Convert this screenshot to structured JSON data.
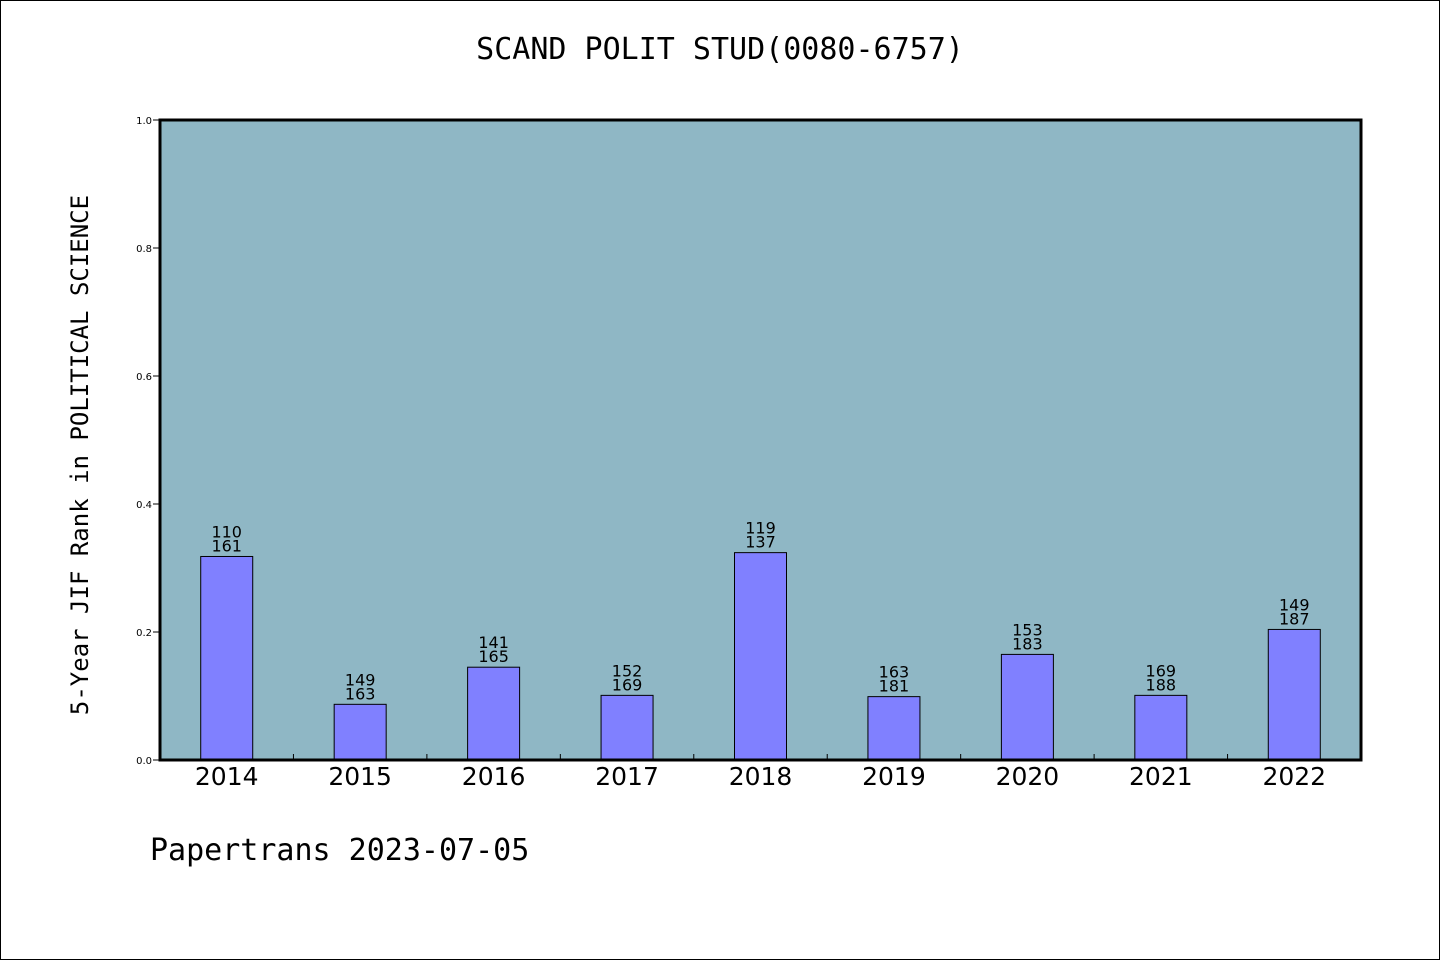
{
  "chart_data": {
    "type": "bar",
    "title": "SCAND POLIT STUD(0080-6757)",
    "xlabel": "",
    "ylabel": "5-Year JIF Rank in POLITICAL SCIENCE",
    "ylim": [
      0,
      1.0
    ],
    "yticks": [
      "0.0",
      "0.2",
      "0.4",
      "0.6",
      "0.8",
      "1.0"
    ],
    "categories": [
      "2014",
      "2015",
      "2016",
      "2017",
      "2018",
      "2019",
      "2020",
      "2021",
      "2022"
    ],
    "values": [
      0.318,
      0.087,
      0.145,
      0.101,
      0.324,
      0.099,
      0.165,
      0.101,
      0.204
    ],
    "label_top": [
      "110",
      "149",
      "141",
      "152",
      "119",
      "163",
      "153",
      "169",
      "149"
    ],
    "label_bottom": [
      "161",
      "163",
      "165",
      "169",
      "137",
      "181",
      "183",
      "188",
      "187"
    ],
    "grid": false,
    "legend": "none",
    "colors": {
      "plot_bg": "#8fb7c5",
      "bar_fill": "#8080ff",
      "bar_stroke": "#000000",
      "axis": "#000000"
    }
  },
  "footer": {
    "text": "Papertrans 2023-07-05"
  }
}
